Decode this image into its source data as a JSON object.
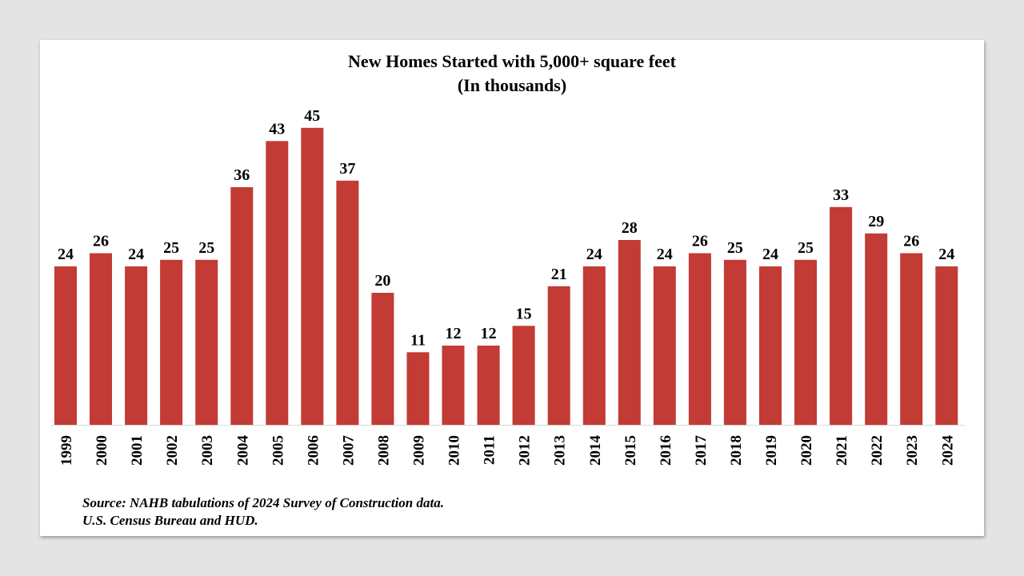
{
  "chart_data": {
    "type": "bar",
    "title": "New Homes Started with 5,000+ square feet",
    "subtitle": "(In thousands)",
    "xlabel": "",
    "ylabel": "",
    "ylim": [
      0,
      45
    ],
    "grid": false,
    "legend": "none",
    "bar_color": "#c23b34",
    "categories": [
      "1999",
      "2000",
      "2001",
      "2002",
      "2003",
      "2004",
      "2005",
      "2006",
      "2007",
      "2008",
      "2009",
      "2010",
      "2011",
      "2012",
      "2013",
      "2014",
      "2015",
      "2016",
      "2017",
      "2018",
      "2019",
      "2020",
      "2021",
      "2022",
      "2023",
      "2024"
    ],
    "values": [
      24,
      26,
      24,
      25,
      25,
      36,
      43,
      45,
      37,
      20,
      11,
      12,
      12,
      15,
      21,
      24,
      28,
      24,
      26,
      25,
      24,
      25,
      33,
      29,
      26,
      24
    ],
    "data_labels": [
      "24",
      "26",
      "24",
      "25",
      "25",
      "36",
      "43",
      "45",
      "37",
      "20",
      "11",
      "12",
      "12",
      "15",
      "21",
      "24",
      "28",
      "24",
      "26",
      "25",
      "24",
      "25",
      "33",
      "29",
      "26",
      "24"
    ]
  },
  "source": {
    "line1": "Source: NAHB tabulations of 2024 Survey of Construction data.",
    "line2": "U.S. Census Bureau and HUD."
  }
}
